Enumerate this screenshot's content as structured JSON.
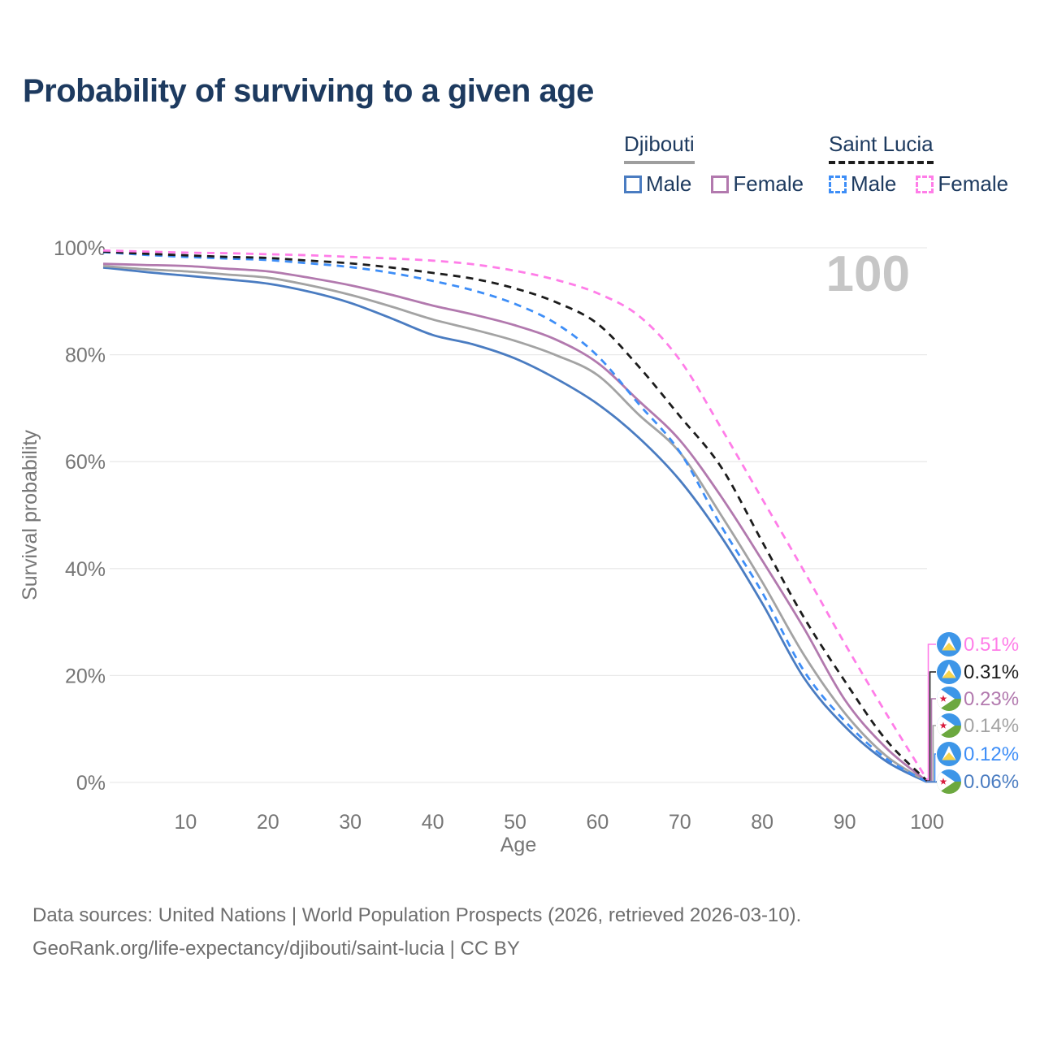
{
  "title": "Probability of surviving to a given age",
  "watermark": "100",
  "legend": {
    "groups": [
      {
        "label": "Djibouti",
        "line_color": "#9e9e9e",
        "line_style": "solid",
        "items": [
          {
            "label": "Male",
            "color": "#4a7cc1",
            "style": "solid"
          },
          {
            "label": "Female",
            "color": "#b279ae",
            "style": "solid"
          }
        ]
      },
      {
        "label": "Saint Lucia",
        "line_color": "#1c1c1c",
        "line_style": "dashed",
        "items": [
          {
            "label": "Male",
            "color": "#3e8ef7",
            "style": "dashed"
          },
          {
            "label": "Female",
            "color": "#ff7de8",
            "style": "dashed"
          }
        ]
      }
    ]
  },
  "chart_data": {
    "type": "line",
    "title": "Probability of surviving to a given age",
    "xlabel": "Age",
    "ylabel": "Survival probability",
    "xlim": [
      0,
      100
    ],
    "ylim": [
      0,
      100
    ],
    "grid": "horizontal",
    "x_ticks": [
      "10",
      "20",
      "30",
      "40",
      "50",
      "60",
      "70",
      "80",
      "90",
      "100"
    ],
    "y_ticks": [
      "0%",
      "20%",
      "40%",
      "60%",
      "80%",
      "100%"
    ],
    "hover_age": "100",
    "x": [
      0,
      5,
      10,
      15,
      20,
      25,
      30,
      35,
      40,
      45,
      50,
      55,
      60,
      65,
      70,
      75,
      80,
      85,
      90,
      95,
      100
    ],
    "series": [
      {
        "name": "Djibouti Male",
        "country": "Djibouti",
        "sex": "Male",
        "color": "#4a7cc1",
        "dash": "solid",
        "end_label": "0.06%",
        "values": [
          96.3,
          95.5,
          94.8,
          94.1,
          93.3,
          91.8,
          89.7,
          86.8,
          83.7,
          81.9,
          79.3,
          75.5,
          70.8,
          64.5,
          56.5,
          46,
          33.5,
          19.7,
          10.5,
          4,
          0.06
        ]
      },
      {
        "name": "Djibouti",
        "country": "Djibouti",
        "sex": "Both",
        "color": "#a3a3a3",
        "dash": "solid",
        "end_label": "0.14%",
        "values": [
          96.6,
          96.0,
          95.6,
          95.0,
          94.4,
          93.0,
          91.2,
          89.0,
          86.6,
          84.7,
          82.6,
          79.9,
          76.2,
          68.8,
          61.7,
          50,
          37.5,
          24,
          13,
          5,
          0.14
        ]
      },
      {
        "name": "Djibouti Female",
        "country": "Djibouti",
        "sex": "Female",
        "color": "#b279ae",
        "dash": "solid",
        "end_label": "0.23%",
        "values": [
          97.0,
          96.8,
          96.6,
          96.1,
          95.6,
          94.4,
          93.0,
          91.2,
          89.2,
          87.5,
          85.5,
          82.8,
          78.5,
          71.4,
          64,
          53.5,
          41.5,
          29,
          15.5,
          6.5,
          0.23
        ]
      },
      {
        "name": "Saint Lucia Male",
        "country": "Saint Lucia",
        "sex": "Male",
        "color": "#3e8ef7",
        "dash": "dashed",
        "end_label": "0.12%",
        "values": [
          99.2,
          98.7,
          98.3,
          98.0,
          97.7,
          97.1,
          96.4,
          95.3,
          93.8,
          92.0,
          89.5,
          85.8,
          79.8,
          70.8,
          61.8,
          48,
          35.5,
          21,
          11.5,
          4.5,
          0.12
        ]
      },
      {
        "name": "Saint Lucia",
        "country": "Saint Lucia",
        "sex": "Both",
        "color": "#1c1c1c",
        "dash": "dashed",
        "end_label": "0.31%",
        "values": [
          99.3,
          98.9,
          98.6,
          98.3,
          98.1,
          97.6,
          97.1,
          96.3,
          95.3,
          94.2,
          92.4,
          89.8,
          85.8,
          77.8,
          68.5,
          59,
          45,
          31,
          19,
          8,
          0.31
        ]
      },
      {
        "name": "Saint Lucia Female",
        "country": "Saint Lucia",
        "sex": "Female",
        "color": "#ff7de8",
        "dash": "dashed",
        "end_label": "0.51%",
        "values": [
          99.5,
          99.3,
          99.1,
          99.0,
          98.8,
          98.6,
          98.3,
          98.0,
          97.6,
          96.9,
          95.7,
          94.0,
          91.5,
          87.3,
          79,
          66.3,
          53,
          39.7,
          26,
          13,
          0.51
        ]
      }
    ],
    "end_labels": [
      {
        "text": "0.51%",
        "color": "#ff7de8",
        "flag": "saint-lucia",
        "series": "Saint Lucia Female"
      },
      {
        "text": "0.31%",
        "color": "#1c1c1c",
        "flag": "saint-lucia",
        "series": "Saint Lucia"
      },
      {
        "text": "0.23%",
        "color": "#b279ae",
        "flag": "djibouti",
        "series": "Djibouti Female"
      },
      {
        "text": "0.14%",
        "color": "#a3a3a3",
        "flag": "djibouti",
        "series": "Djibouti"
      },
      {
        "text": "0.12%",
        "color": "#3e8ef7",
        "flag": "saint-lucia",
        "series": "Saint Lucia Male"
      },
      {
        "text": "0.06%",
        "color": "#4a7cc1",
        "flag": "djibouti",
        "series": "Djibouti Male"
      }
    ]
  },
  "colors": {
    "title": "#1d3a5f",
    "axis_text": "#767676",
    "gridline": "#e9e9e9",
    "watermark": "#c6c6c6",
    "footer_text": "#6e6e6e",
    "flag_blue": "#3d96e8",
    "flag_green": "#6ca83f",
    "flag_yellow": "#f7d44c",
    "flag_red": "#d81e3f"
  },
  "footer": {
    "line1": "Data sources: United Nations | World Population Prospects (2026, retrieved 2026-03-10).",
    "line2": "GeoRank.org/life-expectancy/djibouti/saint-lucia | CC BY"
  }
}
